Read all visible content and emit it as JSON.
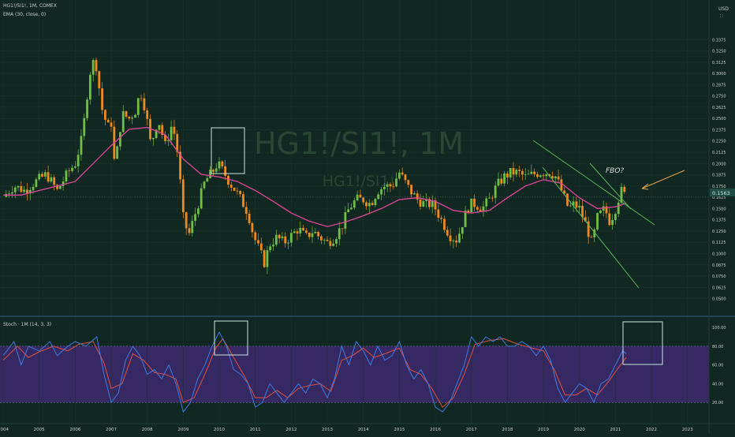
{
  "header": {
    "symbol_line": "HG1!/SI1!, 1M, COMEX",
    "ema_line": "EMA (30, close, 0)",
    "watermark_big": "HG1!/SI1!, 1M",
    "watermark_small": "HG1!/SI1!",
    "currency": "USD",
    "currency_sub": "∷"
  },
  "price_label": "0.1563",
  "annotation": "FBO?",
  "stoch_title": "Stoch · 1M (14, 3, 3)",
  "colors": {
    "background": "#112722",
    "up_candle": "#6fbf45",
    "down_candle": "#f08a1c",
    "ema": "#e0479a",
    "stoch_k": "#3d7be0",
    "stoch_d": "#e0503c",
    "stoch_band": "#3d2a6e",
    "channel": "#5cb85c",
    "arrow": "#e0a34c",
    "box": "#c9e6df"
  },
  "chart_data": [
    {
      "type": "candlestick",
      "title": "HG1!/SI1!, 1M, COMEX",
      "x_range": [
        2004.0,
        2023.4
      ],
      "ylim": [
        0.04,
        0.35
      ],
      "y_ticks": [
        "0.3375",
        "0.3250",
        "0.3125",
        "0.3000",
        "0.2875",
        "0.2750",
        "0.2625",
        "0.2500",
        "0.2375",
        "0.2250",
        "0.2125",
        "0.2000",
        "0.1875",
        "0.1750",
        "0.1625",
        "0.1500",
        "0.1375",
        "0.1250",
        "0.1125",
        "0.1000",
        "0.0875",
        "0.0750",
        "0.0625",
        "0.0500"
      ],
      "x_ticks": [
        "2004",
        "2005",
        "2006",
        "2007",
        "2008",
        "2009",
        "2010",
        "2011",
        "2012",
        "2013",
        "2014",
        "2015",
        "2016",
        "2017",
        "2018",
        "2019",
        "2020",
        "2021",
        "2022",
        "2023"
      ],
      "close_points": [
        [
          2004.0,
          0.163
        ],
        [
          2004.3,
          0.175
        ],
        [
          2004.6,
          0.17
        ],
        [
          2004.9,
          0.18
        ],
        [
          2005.2,
          0.188
        ],
        [
          2005.5,
          0.17
        ],
        [
          2005.8,
          0.19
        ],
        [
          2006.0,
          0.2
        ],
        [
          2006.2,
          0.23
        ],
        [
          2006.4,
          0.3
        ],
        [
          2006.55,
          0.318
        ],
        [
          2006.75,
          0.26
        ],
        [
          2006.9,
          0.24
        ],
        [
          2007.0,
          0.245
        ],
        [
          2007.1,
          0.195
        ],
        [
          2007.3,
          0.255
        ],
        [
          2007.5,
          0.25
        ],
        [
          2007.7,
          0.26
        ],
        [
          2007.8,
          0.282
        ],
        [
          2007.95,
          0.26
        ],
        [
          2008.1,
          0.22
        ],
        [
          2008.3,
          0.25
        ],
        [
          2008.5,
          0.22
        ],
        [
          2008.7,
          0.245
        ],
        [
          2008.85,
          0.21
        ],
        [
          2009.0,
          0.14
        ],
        [
          2009.15,
          0.12
        ],
        [
          2009.3,
          0.14
        ],
        [
          2009.45,
          0.16
        ],
        [
          2009.6,
          0.18
        ],
        [
          2009.8,
          0.19
        ],
        [
          2009.95,
          0.2
        ],
        [
          2010.1,
          0.192
        ],
        [
          2010.3,
          0.178
        ],
        [
          2010.45,
          0.17
        ],
        [
          2010.6,
          0.16
        ],
        [
          2010.8,
          0.145
        ],
        [
          2010.95,
          0.12
        ],
        [
          2011.1,
          0.105
        ],
        [
          2011.25,
          0.09
        ],
        [
          2011.4,
          0.11
        ],
        [
          2011.6,
          0.118
        ],
        [
          2011.8,
          0.112
        ],
        [
          2012.0,
          0.12
        ],
        [
          2012.2,
          0.128
        ],
        [
          2012.4,
          0.118
        ],
        [
          2012.6,
          0.125
        ],
        [
          2012.8,
          0.118
        ],
        [
          2013.0,
          0.112
        ],
        [
          2013.2,
          0.118
        ],
        [
          2013.4,
          0.13
        ],
        [
          2013.6,
          0.15
        ],
        [
          2013.8,
          0.16
        ],
        [
          2014.0,
          0.16
        ],
        [
          2014.2,
          0.155
        ],
        [
          2014.4,
          0.17
        ],
        [
          2014.6,
          0.175
        ],
        [
          2014.8,
          0.175
        ],
        [
          2015.0,
          0.19
        ],
        [
          2015.15,
          0.18
        ],
        [
          2015.3,
          0.17
        ],
        [
          2015.5,
          0.16
        ],
        [
          2015.7,
          0.155
        ],
        [
          2015.9,
          0.155
        ],
        [
          2016.0,
          0.15
        ],
        [
          2016.2,
          0.135
        ],
        [
          2016.4,
          0.12
        ],
        [
          2016.6,
          0.115
        ],
        [
          2016.8,
          0.14
        ],
        [
          2016.95,
          0.155
        ],
        [
          2017.1,
          0.155
        ],
        [
          2017.3,
          0.15
        ],
        [
          2017.5,
          0.16
        ],
        [
          2017.7,
          0.175
        ],
        [
          2017.9,
          0.185
        ],
        [
          2018.1,
          0.19
        ],
        [
          2018.3,
          0.19
        ],
        [
          2018.5,
          0.185
        ],
        [
          2018.7,
          0.188
        ],
        [
          2018.9,
          0.19
        ],
        [
          2019.0,
          0.19
        ],
        [
          2019.2,
          0.19
        ],
        [
          2019.35,
          0.185
        ],
        [
          2019.5,
          0.17
        ],
        [
          2019.7,
          0.15
        ],
        [
          2019.85,
          0.155
        ],
        [
          2020.0,
          0.15
        ],
        [
          2020.2,
          0.13
        ],
        [
          2020.35,
          0.11
        ],
        [
          2020.5,
          0.14
        ],
        [
          2020.7,
          0.15
        ],
        [
          2020.85,
          0.135
        ],
        [
          2021.0,
          0.15
        ],
        [
          2021.15,
          0.17
        ],
        [
          2021.3,
          0.163
        ]
      ],
      "ema_points": [
        [
          2004.0,
          0.165
        ],
        [
          2004.5,
          0.165
        ],
        [
          2005.0,
          0.17
        ],
        [
          2005.5,
          0.175
        ],
        [
          2006.0,
          0.18
        ],
        [
          2006.5,
          0.2
        ],
        [
          2007.0,
          0.22
        ],
        [
          2007.5,
          0.238
        ],
        [
          2008.0,
          0.24
        ],
        [
          2008.5,
          0.232
        ],
        [
          2009.0,
          0.205
        ],
        [
          2009.5,
          0.188
        ],
        [
          2010.0,
          0.185
        ],
        [
          2010.5,
          0.18
        ],
        [
          2011.0,
          0.17
        ],
        [
          2011.5,
          0.158
        ],
        [
          2012.0,
          0.145
        ],
        [
          2012.5,
          0.136
        ],
        [
          2013.0,
          0.13
        ],
        [
          2013.5,
          0.135
        ],
        [
          2014.0,
          0.142
        ],
        [
          2014.5,
          0.15
        ],
        [
          2015.0,
          0.16
        ],
        [
          2015.5,
          0.162
        ],
        [
          2016.0,
          0.158
        ],
        [
          2016.5,
          0.148
        ],
        [
          2017.0,
          0.145
        ],
        [
          2017.5,
          0.148
        ],
        [
          2018.0,
          0.162
        ],
        [
          2018.5,
          0.175
        ],
        [
          2019.0,
          0.182
        ],
        [
          2019.5,
          0.178
        ],
        [
          2020.0,
          0.162
        ],
        [
          2020.5,
          0.15
        ],
        [
          2021.0,
          0.152
        ],
        [
          2021.3,
          0.156
        ]
      ],
      "series": [
        {
          "name": "HG1!/SI1!"
        },
        {
          "name": "EMA (30, close, 0)"
        }
      ]
    },
    {
      "type": "line",
      "title": "Stoch · 1M (14, 3, 3)",
      "ylim": [
        0,
        106
      ],
      "y_ticks": [
        "100.00",
        "80.00",
        "60.00",
        "40.00",
        "20.00"
      ],
      "band": [
        20,
        80
      ],
      "k_points": [
        [
          2004.0,
          70
        ],
        [
          2004.3,
          85
        ],
        [
          2004.5,
          60
        ],
        [
          2004.7,
          80
        ],
        [
          2005.0,
          75
        ],
        [
          2005.3,
          85
        ],
        [
          2005.5,
          70
        ],
        [
          2005.8,
          80
        ],
        [
          2006.0,
          85
        ],
        [
          2006.3,
          80
        ],
        [
          2006.6,
          90
        ],
        [
          2006.8,
          50
        ],
        [
          2007.0,
          20
        ],
        [
          2007.2,
          30
        ],
        [
          2007.4,
          65
        ],
        [
          2007.6,
          80
        ],
        [
          2007.8,
          70
        ],
        [
          2008.0,
          50
        ],
        [
          2008.2,
          55
        ],
        [
          2008.4,
          45
        ],
        [
          2008.6,
          60
        ],
        [
          2008.8,
          40
        ],
        [
          2009.0,
          10
        ],
        [
          2009.2,
          20
        ],
        [
          2009.4,
          45
        ],
        [
          2009.6,
          60
        ],
        [
          2009.8,
          80
        ],
        [
          2010.0,
          95
        ],
        [
          2010.2,
          80
        ],
        [
          2010.4,
          55
        ],
        [
          2010.6,
          50
        ],
        [
          2010.8,
          40
        ],
        [
          2011.0,
          15
        ],
        [
          2011.2,
          20
        ],
        [
          2011.4,
          40
        ],
        [
          2011.6,
          30
        ],
        [
          2011.8,
          20
        ],
        [
          2012.0,
          30
        ],
        [
          2012.2,
          40
        ],
        [
          2012.4,
          30
        ],
        [
          2012.6,
          45
        ],
        [
          2012.8,
          40
        ],
        [
          2013.0,
          25
        ],
        [
          2013.2,
          45
        ],
        [
          2013.4,
          80
        ],
        [
          2013.6,
          60
        ],
        [
          2013.8,
          85
        ],
        [
          2014.0,
          75
        ],
        [
          2014.2,
          60
        ],
        [
          2014.4,
          80
        ],
        [
          2014.6,
          65
        ],
        [
          2014.8,
          70
        ],
        [
          2015.0,
          85
        ],
        [
          2015.2,
          60
        ],
        [
          2015.4,
          45
        ],
        [
          2015.6,
          55
        ],
        [
          2015.8,
          40
        ],
        [
          2016.0,
          15
        ],
        [
          2016.2,
          10
        ],
        [
          2016.4,
          20
        ],
        [
          2016.6,
          40
        ],
        [
          2016.8,
          60
        ],
        [
          2017.0,
          90
        ],
        [
          2017.2,
          80
        ],
        [
          2017.4,
          90
        ],
        [
          2017.6,
          85
        ],
        [
          2017.8,
          90
        ],
        [
          2018.0,
          80
        ],
        [
          2018.2,
          80
        ],
        [
          2018.4,
          85
        ],
        [
          2018.6,
          80
        ],
        [
          2018.8,
          70
        ],
        [
          2019.0,
          80
        ],
        [
          2019.2,
          65
        ],
        [
          2019.4,
          35
        ],
        [
          2019.6,
          20
        ],
        [
          2019.8,
          30
        ],
        [
          2020.0,
          40
        ],
        [
          2020.2,
          35
        ],
        [
          2020.4,
          20
        ],
        [
          2020.6,
          40
        ],
        [
          2020.8,
          45
        ],
        [
          2021.0,
          60
        ],
        [
          2021.2,
          75
        ],
        [
          2021.3,
          72
        ]
      ],
      "d_points": [
        [
          2004.0,
          65
        ],
        [
          2004.4,
          80
        ],
        [
          2004.7,
          68
        ],
        [
          2005.0,
          74
        ],
        [
          2005.4,
          80
        ],
        [
          2005.8,
          75
        ],
        [
          2006.1,
          82
        ],
        [
          2006.5,
          85
        ],
        [
          2006.8,
          62
        ],
        [
          2007.0,
          35
        ],
        [
          2007.3,
          40
        ],
        [
          2007.6,
          72
        ],
        [
          2007.9,
          65
        ],
        [
          2008.2,
          52
        ],
        [
          2008.5,
          50
        ],
        [
          2008.8,
          45
        ],
        [
          2009.0,
          20
        ],
        [
          2009.3,
          25
        ],
        [
          2009.6,
          50
        ],
        [
          2009.9,
          78
        ],
        [
          2010.1,
          88
        ],
        [
          2010.4,
          68
        ],
        [
          2010.7,
          48
        ],
        [
          2011.0,
          25
        ],
        [
          2011.3,
          25
        ],
        [
          2011.6,
          33
        ],
        [
          2011.9,
          25
        ],
        [
          2012.2,
          35
        ],
        [
          2012.5,
          38
        ],
        [
          2012.8,
          40
        ],
        [
          2013.1,
          32
        ],
        [
          2013.4,
          65
        ],
        [
          2013.7,
          70
        ],
        [
          2014.0,
          78
        ],
        [
          2014.3,
          68
        ],
        [
          2014.6,
          72
        ],
        [
          2015.0,
          78
        ],
        [
          2015.3,
          55
        ],
        [
          2015.6,
          50
        ],
        [
          2015.9,
          35
        ],
        [
          2016.2,
          15
        ],
        [
          2016.5,
          25
        ],
        [
          2016.8,
          50
        ],
        [
          2017.1,
          82
        ],
        [
          2017.5,
          86
        ],
        [
          2017.9,
          88
        ],
        [
          2018.3,
          82
        ],
        [
          2018.7,
          78
        ],
        [
          2019.0,
          75
        ],
        [
          2019.3,
          55
        ],
        [
          2019.6,
          28
        ],
        [
          2019.9,
          28
        ],
        [
          2020.2,
          35
        ],
        [
          2020.5,
          28
        ],
        [
          2020.8,
          42
        ],
        [
          2021.1,
          58
        ],
        [
          2021.3,
          68
        ]
      ]
    }
  ]
}
